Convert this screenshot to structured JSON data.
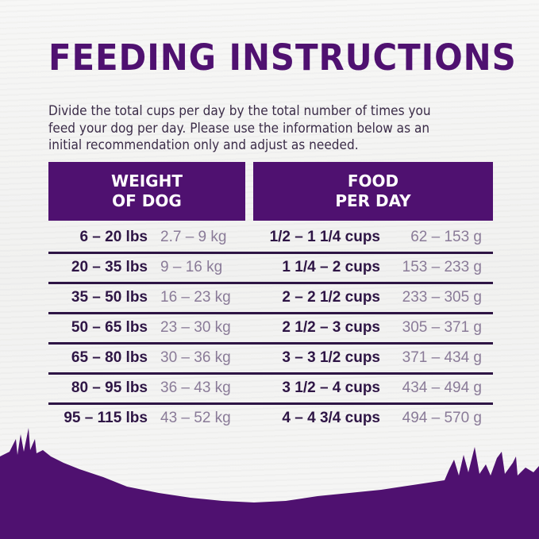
{
  "title": "FEEDING INSTRUCTIONS",
  "intro": [
    "Divide the total cups per day by the total number of times you",
    "feed your dog per day. Please use the information below as an",
    "initial recommendation only and adjust as needed."
  ],
  "headers": {
    "weight": [
      "WEIGHT",
      "OF DOG"
    ],
    "food": [
      "FOOD",
      "PER DAY"
    ]
  },
  "rows": [
    {
      "lbs": "6 – 20 lbs",
      "kg": "2.7 – 9 kg",
      "cups": "1/2 – 1 1/4 cups",
      "g": "62 – 153 g"
    },
    {
      "lbs": "20 – 35 lbs",
      "kg": "9 – 16 kg",
      "cups": "1 1/4 – 2 cups",
      "g": "153 – 233 g"
    },
    {
      "lbs": "35 – 50 lbs",
      "kg": "16 – 23 kg",
      "cups": "2 – 2 1/2 cups",
      "g": "233 – 305 g"
    },
    {
      "lbs": "50 – 65 lbs",
      "kg": "23 – 30 kg",
      "cups": "2 1/2 – 3 cups",
      "g": "305 – 371 g"
    },
    {
      "lbs": "65 – 80 lbs",
      "kg": "30 – 36 kg",
      "cups": "3 – 3 1/2 cups",
      "g": "371 – 434 g"
    },
    {
      "lbs": "80 – 95 lbs",
      "kg": "36 – 43 kg",
      "cups": "3 1/2 – 4 cups",
      "g": "434 – 494 g"
    },
    {
      "lbs": "95 – 115 lbs",
      "kg": "43 – 52 kg",
      "cups": "4 – 4 3/4 cups",
      "g": "494 – 570 g"
    }
  ],
  "colors": {
    "brand_purple": "#4f1170",
    "dark_text": "#2e1545",
    "muted_text": "#8a7b98"
  }
}
